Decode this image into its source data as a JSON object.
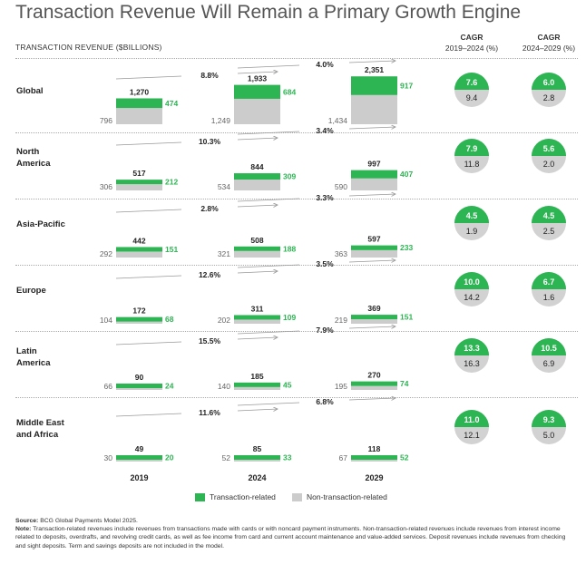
{
  "title": "Transaction Revenue Will Remain a Primary Growth Engine",
  "chart_data": {
    "type": "bar",
    "subtype": "stacked",
    "ylabel": "TRANSACTION REVENUE ($BILLIONS)",
    "categories": [
      "2019",
      "2024",
      "2029"
    ],
    "legend": [
      {
        "name": "Transaction-related",
        "color": "#2cb552"
      },
      {
        "name": "Non-transaction-related",
        "color": "#cccccc"
      }
    ],
    "cagr_headers": [
      {
        "line1": "CAGR",
        "line2": "2019–2024 (%)"
      },
      {
        "line1": "CAGR",
        "line2": "2024–2029 (%)"
      }
    ],
    "regions": [
      {
        "name": [
          "Global"
        ],
        "totals": [
          "1,270",
          "1,933",
          "2,351"
        ],
        "nontx": [
          796,
          1249,
          1434
        ],
        "tx": [
          474,
          684,
          917
        ],
        "nontx_labels": [
          "796",
          "1,249",
          "1,434"
        ],
        "tx_labels": [
          "474",
          "684",
          "917"
        ],
        "growth": [
          "8.8%",
          "4.0%"
        ],
        "cagr_1924": {
          "tx": "7.6",
          "nontx": "9.4"
        },
        "cagr_2429": {
          "tx": "6.0",
          "nontx": "2.8"
        }
      },
      {
        "name": [
          "North",
          "America"
        ],
        "totals": [
          "517",
          "844",
          "997"
        ],
        "nontx": [
          306,
          534,
          590
        ],
        "tx": [
          212,
          309,
          407
        ],
        "nontx_labels": [
          "306",
          "534",
          "590"
        ],
        "tx_labels": [
          "212",
          "309",
          "407"
        ],
        "growth": [
          "10.3%",
          "3.4%"
        ],
        "cagr_1924": {
          "tx": "7.9",
          "nontx": "11.8"
        },
        "cagr_2429": {
          "tx": "5.6",
          "nontx": "2.0"
        }
      },
      {
        "name": [
          "Asia-Pacific"
        ],
        "totals": [
          "442",
          "508",
          "597"
        ],
        "nontx": [
          292,
          321,
          363
        ],
        "tx": [
          151,
          188,
          233
        ],
        "nontx_labels": [
          "292",
          "321",
          "363"
        ],
        "tx_labels": [
          "151",
          "188",
          "233"
        ],
        "growth": [
          "2.8%",
          "3.3%"
        ],
        "cagr_1924": {
          "tx": "4.5",
          "nontx": "1.9"
        },
        "cagr_2429": {
          "tx": "4.5",
          "nontx": "2.5"
        }
      },
      {
        "name": [
          "Europe"
        ],
        "totals": [
          "172",
          "311",
          "369"
        ],
        "nontx": [
          104,
          202,
          219
        ],
        "tx": [
          68,
          109,
          151
        ],
        "nontx_labels": [
          "104",
          "202",
          "219"
        ],
        "tx_labels": [
          "68",
          "109",
          "151"
        ],
        "growth": [
          "12.6%",
          "3.5%"
        ],
        "cagr_1924": {
          "tx": "10.0",
          "nontx": "14.2"
        },
        "cagr_2429": {
          "tx": "6.7",
          "nontx": "1.6"
        }
      },
      {
        "name": [
          "Latin",
          "America"
        ],
        "totals": [
          "90",
          "185",
          "270"
        ],
        "nontx": [
          66,
          140,
          195
        ],
        "tx": [
          24,
          45,
          74
        ],
        "nontx_labels": [
          "66",
          "140",
          "195"
        ],
        "tx_labels": [
          "24",
          "45",
          "74"
        ],
        "growth": [
          "15.5%",
          "7.9%"
        ],
        "cagr_1924": {
          "tx": "13.3",
          "nontx": "16.3"
        },
        "cagr_2429": {
          "tx": "10.5",
          "nontx": "6.9"
        }
      },
      {
        "name": [
          "Middle East",
          "and Africa"
        ],
        "totals": [
          "49",
          "85",
          "118"
        ],
        "nontx": [
          30,
          52,
          67
        ],
        "tx": [
          20,
          33,
          52
        ],
        "nontx_labels": [
          "30",
          "52",
          "67"
        ],
        "tx_labels": [
          "20",
          "33",
          "52"
        ],
        "growth": [
          "11.6%",
          "6.8%"
        ],
        "cagr_1924": {
          "tx": "11.0",
          "nontx": "12.1"
        },
        "cagr_2429": {
          "tx": "9.3",
          "nontx": "5.0"
        }
      }
    ]
  },
  "footer": {
    "source_label": "Source:",
    "source_text": " BCG Global Payments Model 2025.",
    "note_label": "Note:",
    "note_text": " Transaction-related revenues include revenues from transactions made with cards or with noncard payment instruments. Non-transaction-related revenues include revenues from interest income related to deposits, overdrafts, and revolving credit cards, as well as fee income from card and current account maintenance and value-added services. Deposit revenues include revenues from checking and sight deposits. Term and savings deposits are not included in the model."
  }
}
